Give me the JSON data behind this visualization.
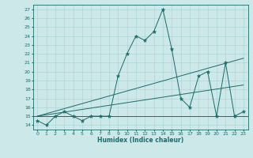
{
  "xlabel": "Humidex (Indice chaleur)",
  "bg_color": "#cce8e8",
  "line_color": "#1a6b6b",
  "grid_color": "#a8d0d0",
  "xlim": [
    -0.5,
    23.5
  ],
  "ylim": [
    13.5,
    27.5
  ],
  "xticks": [
    0,
    1,
    2,
    3,
    4,
    5,
    6,
    7,
    8,
    9,
    10,
    11,
    12,
    13,
    14,
    15,
    16,
    17,
    18,
    19,
    20,
    21,
    22,
    23
  ],
  "yticks": [
    14,
    15,
    16,
    17,
    18,
    19,
    20,
    21,
    22,
    23,
    24,
    25,
    26,
    27
  ],
  "main_x": [
    0,
    1,
    2,
    3,
    4,
    5,
    6,
    7,
    8,
    9,
    10,
    11,
    12,
    13,
    14,
    15,
    16,
    17,
    18,
    19,
    20,
    21,
    22,
    23
  ],
  "main_y": [
    14.5,
    14.0,
    15.0,
    15.5,
    15.0,
    14.5,
    15.0,
    15.0,
    15.0,
    19.5,
    22.0,
    24.0,
    23.5,
    24.5,
    27.0,
    22.5,
    17.0,
    16.0,
    19.5,
    20.0,
    15.0,
    21.0,
    15.0,
    15.5
  ],
  "trend1_x": [
    0,
    23
  ],
  "trend1_y": [
    15.0,
    21.5
  ],
  "trend2_x": [
    0,
    23
  ],
  "trend2_y": [
    15.0,
    18.5
  ],
  "hline_y": 15.0,
  "marker": "*",
  "markersize": 3.5,
  "linewidth": 0.7
}
